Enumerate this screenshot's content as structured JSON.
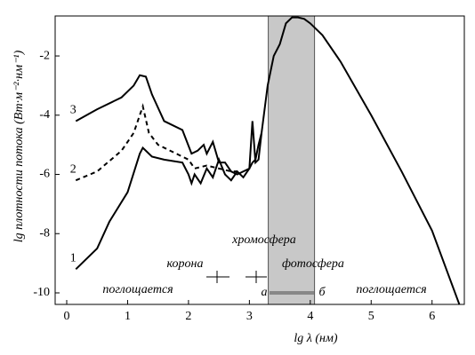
{
  "chart_data": {
    "type": "line",
    "xlabel": "lg λ (нм)",
    "ylabel": "lg плотности потока (Вт·м⁻²·нм⁻¹)",
    "xlim": [
      -0.19,
      6.53
    ],
    "ylim": [
      -10.39,
      -0.65
    ],
    "xticks": [
      0,
      1,
      2,
      3,
      4,
      5,
      6
    ],
    "yticks": [
      -10,
      -8,
      -6,
      -4,
      -2
    ],
    "shaded_x": [
      3.31,
      4.07
    ],
    "series": [
      {
        "name": "1",
        "color": "#000000",
        "dash": false,
        "x": [
          0.15,
          0.5,
          0.7,
          1.0,
          1.2,
          1.25,
          1.4,
          1.6,
          1.9,
          2.0,
          2.05,
          2.1,
          2.2,
          2.3,
          2.4,
          2.5,
          2.6,
          2.7,
          2.8,
          2.9,
          3.0,
          3.05,
          3.1,
          3.15,
          3.2,
          3.3,
          3.4,
          3.5,
          3.6,
          3.7,
          3.8,
          3.9,
          4.0,
          4.2,
          4.5,
          5.0,
          5.5,
          6.0,
          6.45
        ],
        "values": [
          -9.2,
          -8.5,
          -7.6,
          -6.6,
          -5.3,
          -5.1,
          -5.4,
          -5.5,
          -5.6,
          -6.0,
          -6.3,
          -6.0,
          -6.3,
          -5.8,
          -6.1,
          -5.5,
          -6.0,
          -6.2,
          -5.9,
          -6.1,
          -5.8,
          -5.6,
          -5.5,
          -5.0,
          -4.6,
          -3.0,
          -2.0,
          -1.6,
          -0.9,
          -0.7,
          -0.7,
          -0.75,
          -0.9,
          -1.3,
          -2.2,
          -4.0,
          -5.9,
          -7.9,
          -10.4
        ]
      },
      {
        "name": "2",
        "color": "#000000",
        "dash": true,
        "x": [
          0.15,
          0.5,
          0.9,
          1.1,
          1.25,
          1.35,
          1.5,
          1.8,
          2.0,
          2.1,
          2.3,
          2.5,
          2.7,
          2.8
        ],
        "values": [
          -6.2,
          -5.9,
          -5.2,
          -4.6,
          -3.7,
          -4.6,
          -5.0,
          -5.3,
          -5.5,
          -5.8,
          -5.7,
          -5.8,
          -5.9,
          -5.9
        ]
      },
      {
        "name": "3",
        "color": "#000000",
        "dash": false,
        "x": [
          0.15,
          0.5,
          0.9,
          1.1,
          1.2,
          1.3,
          1.4,
          1.6,
          1.9,
          2.05,
          2.15,
          2.25,
          2.3,
          2.4,
          2.5,
          2.6,
          2.7,
          2.8,
          3.0,
          3.05,
          3.1,
          3.15,
          3.2
        ],
        "values": [
          -4.2,
          -3.8,
          -3.4,
          -3.0,
          -2.65,
          -2.7,
          -3.3,
          -4.2,
          -4.5,
          -5.3,
          -5.2,
          -5.0,
          -5.3,
          -4.9,
          -5.6,
          -5.6,
          -5.9,
          -6.0,
          -5.8,
          -4.2,
          -5.6,
          -5.5,
          -4.6
        ]
      }
    ],
    "annotations": [
      "хромосфера",
      "корона",
      "фотосфера",
      "поглощается",
      "поглощается",
      "а",
      "б"
    ]
  }
}
